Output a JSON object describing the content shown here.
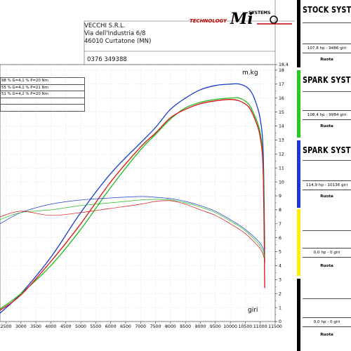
{
  "header": {
    "company": "VECCHI S.R.L.",
    "address_line1": "Via dell'Industria 6/8",
    "address_line2": "46010 Curtatone (MN)",
    "phone": "0376 349388",
    "logo_text": "TECHNOLOGY",
    "logo_mark": "Mi",
    "logo_systems": "SYSTEMS"
  },
  "legend_rows": [
    {
      "text": "98 %   G=4,1 %   P=20 Nm"
    },
    {
      "text": "55 %   G=4,1 %   P=21 Nm"
    },
    {
      "text": "51 %   G=4,2 %   P=20 Nm"
    },
    {
      "text": ""
    },
    {
      "text": ""
    }
  ],
  "panels": [
    {
      "title": "STOCK SYSTEM",
      "value": "107,8 hp - 9486 giri",
      "wheel": "Ruota",
      "color": "#000000"
    },
    {
      "title": "SPARK SYSTEM",
      "value": "108,4 hp - 9984 giri",
      "wheel": "Ruota",
      "color": "#22cc22"
    },
    {
      "title": "SPARK SYSTEM",
      "value": "114,9 hp - 10136 giri",
      "wheel": "Ruota",
      "color": "#1a3ad0"
    },
    {
      "title": "",
      "value": "0,0 hp - 0 giri",
      "wheel": "Ruota",
      "color": "#ffee00"
    },
    {
      "title": "",
      "value": "0,0 hp - 0 giri",
      "wheel": "Ruota",
      "color": "#000000"
    }
  ],
  "chart_data": {
    "type": "line",
    "xlabel": "giri",
    "ylabel": "m.kg",
    "xlim": [
      2300,
      11500
    ],
    "ylim": [
      0,
      18.4
    ],
    "x_ticks": [
      2500,
      3000,
      3500,
      4000,
      4500,
      5000,
      5500,
      6000,
      6500,
      7000,
      7500,
      8000,
      8500,
      9000,
      9500,
      10000,
      10500,
      11000,
      11500
    ],
    "y_ticks": [
      0,
      1,
      2,
      3,
      4,
      5,
      6,
      7,
      8,
      9,
      10,
      11,
      12,
      13,
      14,
      15,
      16,
      17,
      18,
      18.4
    ],
    "x_tick_labels": [
      "2500",
      "3000",
      "3500",
      "4000",
      "4500",
      "5000",
      "5500",
      "6000",
      "6500",
      "7000",
      "7500",
      "8000",
      "8500",
      "9000",
      "9500",
      "10000",
      "10500",
      "11000",
      "11500"
    ],
    "y_tick_labels": [
      "0",
      "1",
      "2",
      "3",
      "4",
      "5",
      "6",
      "7",
      "8",
      "9",
      "10",
      "11",
      "12",
      "13",
      "14",
      "15",
      "16",
      "17",
      "18",
      "18,4"
    ],
    "grid": true,
    "series": [
      {
        "color": "#1a3ad0",
        "kind": "power",
        "x": [
          2300,
          3000,
          4000,
          5000,
          6000,
          7000,
          7500,
          8000,
          8500,
          9000,
          9500,
          10000,
          10300,
          10600,
          10800,
          11000,
          11100,
          11150
        ],
        "y": [
          0.6,
          2.0,
          4.6,
          7.8,
          10.6,
          12.8,
          13.9,
          15.2,
          16.0,
          16.6,
          16.9,
          17.0,
          17.0,
          16.7,
          16.0,
          14.5,
          12.0,
          5.2
        ]
      },
      {
        "color": "#22bb22",
        "kind": "power",
        "x": [
          2300,
          3000,
          4000,
          5000,
          6000,
          7000,
          7500,
          8000,
          8500,
          9000,
          9500,
          10000,
          10300,
          10600,
          10800,
          11000,
          11100,
          11150
        ],
        "y": [
          0.9,
          2.0,
          4.0,
          6.6,
          9.6,
          12.3,
          13.4,
          14.5,
          15.3,
          15.7,
          15.9,
          16.0,
          16.0,
          15.6,
          14.8,
          13.5,
          11.0,
          4.2
        ]
      },
      {
        "color": "#dd1111",
        "kind": "power",
        "x": [
          2300,
          3000,
          4000,
          5000,
          6000,
          7000,
          7500,
          8000,
          8500,
          9000,
          9500,
          10000,
          10300,
          10600,
          10800,
          11000,
          11100,
          11150
        ],
        "y": [
          0.8,
          1.9,
          4.3,
          7.0,
          10.0,
          12.5,
          13.5,
          14.6,
          15.2,
          15.6,
          15.8,
          15.9,
          15.8,
          15.4,
          14.6,
          13.2,
          10.5,
          2.4
        ]
      },
      {
        "color": "#1a3ad0",
        "kind": "torque",
        "x": [
          2300,
          3000,
          4000,
          5000,
          6000,
          7000,
          7500,
          8000,
          8500,
          9000,
          9500,
          10000,
          10500,
          11000,
          11150
        ],
        "y": [
          7.0,
          7.8,
          8.4,
          8.7,
          8.85,
          8.95,
          8.9,
          8.8,
          8.6,
          8.3,
          7.9,
          7.3,
          6.6,
          5.6,
          4.9
        ]
      },
      {
        "color": "#22bb22",
        "kind": "torque",
        "x": [
          2300,
          3000,
          4000,
          5000,
          6000,
          7000,
          7500,
          8000,
          8500,
          9000,
          9500,
          10000,
          10500,
          11000,
          11150
        ],
        "y": [
          7.3,
          7.8,
          8.0,
          8.3,
          8.5,
          8.7,
          8.75,
          8.7,
          8.5,
          8.2,
          7.8,
          7.2,
          6.5,
          5.4,
          4.6
        ]
      },
      {
        "color": "#dd1111",
        "kind": "torque",
        "x": [
          2300,
          3000,
          4000,
          5000,
          6000,
          7000,
          7500,
          8000,
          8500,
          9000,
          9500,
          10000,
          10500,
          11000,
          11150
        ],
        "y": [
          7.5,
          7.9,
          7.6,
          7.8,
          8.1,
          8.4,
          8.6,
          8.65,
          8.4,
          8.0,
          7.6,
          7.0,
          6.3,
          5.2,
          4.4
        ]
      }
    ]
  }
}
